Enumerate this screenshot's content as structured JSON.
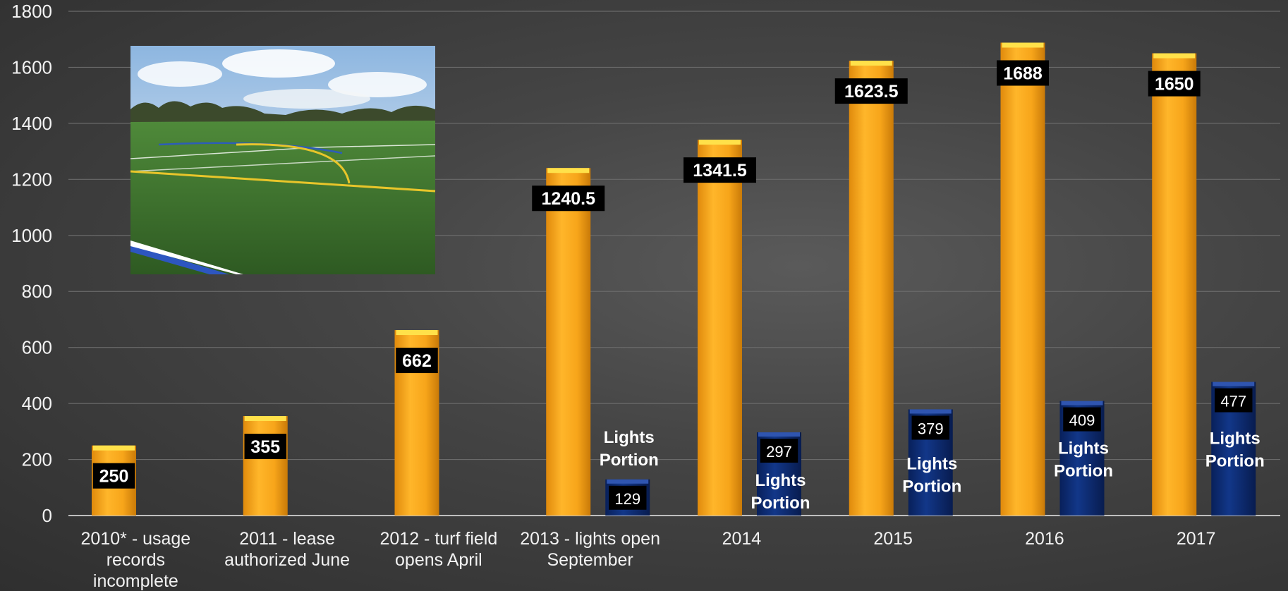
{
  "chart_data": {
    "type": "bar",
    "title": "",
    "xlabel": "",
    "ylabel": "",
    "ylim": [
      0,
      1800
    ],
    "yticks": [
      0,
      200,
      400,
      600,
      800,
      1000,
      1200,
      1400,
      1600,
      1800
    ],
    "grid": true,
    "legend": "none",
    "categories": [
      [
        "2010* - usage",
        "records",
        "incomplete"
      ],
      [
        "2011 - lease",
        "authorized June"
      ],
      [
        "2012 - turf field",
        "opens April"
      ],
      [
        "2013 - lights open",
        "September"
      ],
      [
        "2014"
      ],
      [
        "2015"
      ],
      [
        "2016"
      ],
      [
        "2017"
      ]
    ],
    "series": [
      {
        "color": "#f5a41c",
        "values": [
          250,
          355,
          662,
          1240.5,
          1341.5,
          1623.5,
          1688,
          1650
        ]
      },
      {
        "color": "#0d2a6e",
        "values": [
          null,
          null,
          null,
          129,
          297,
          379,
          409,
          477
        ]
      }
    ],
    "annotation_label": "Lights Portion",
    "annotation_lines": [
      "Lights",
      "Portion"
    ]
  },
  "photo": {
    "icon": "turf-field-photo"
  },
  "colors": {
    "orange": "#f5a41c",
    "navy": "#0d2a6e",
    "grid": "#6a6a6a",
    "axis": "#bfbfbf"
  }
}
